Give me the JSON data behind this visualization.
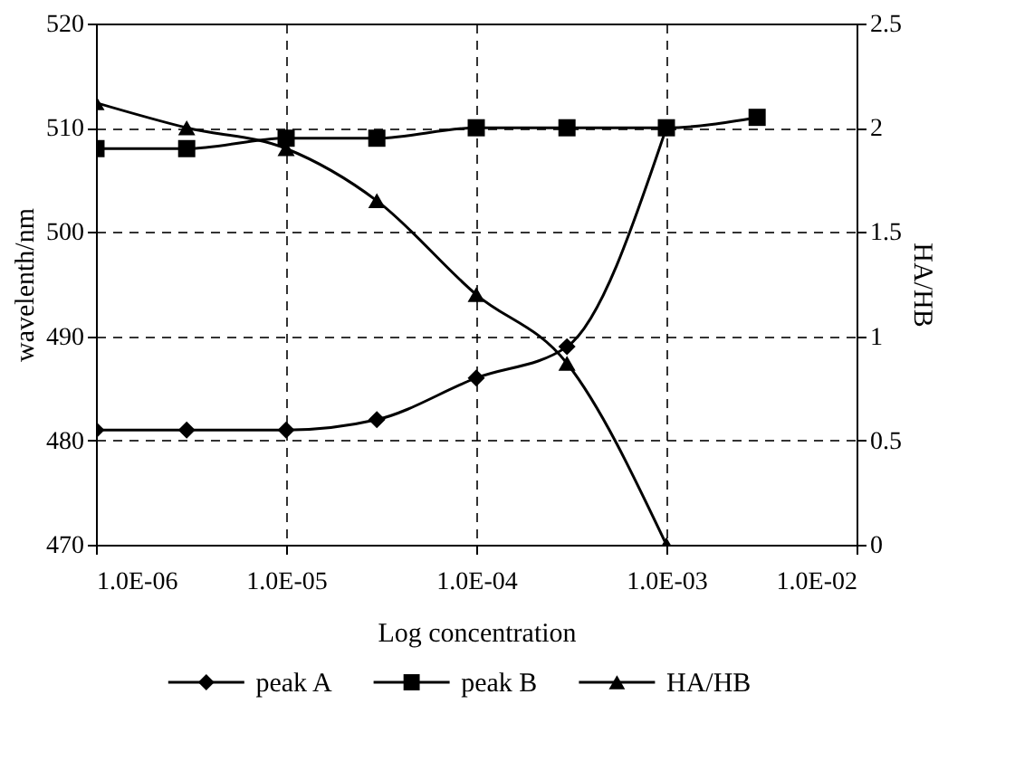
{
  "chart_data": {
    "type": "line",
    "xlabel": "Log concentration",
    "ylabel": "wavelenth/nm",
    "y2label": "HA/HB",
    "log": "x",
    "xlim": [
      1e-06,
      0.01
    ],
    "xticks": [
      {
        "value": 1e-06,
        "label": "1.0E-06"
      },
      {
        "value": 1e-05,
        "label": "1.0E-05"
      },
      {
        "value": 0.0001,
        "label": "1.0E-04"
      },
      {
        "value": 0.001,
        "label": "1.0E-03"
      },
      {
        "value": 0.01,
        "label": "1.0E-02"
      }
    ],
    "ylim": [
      470,
      520
    ],
    "yticks": [
      470,
      480,
      490,
      500,
      510,
      520
    ],
    "y2lim": [
      0,
      2.5
    ],
    "y2ticks": [
      0,
      0.5,
      1,
      1.5,
      2,
      2.5
    ],
    "grid": true,
    "legend": "bottom",
    "line_style": "solid",
    "series": [
      {
        "name": "peak A",
        "color": "#000000",
        "marker": "diamond",
        "x": [
          1e-06,
          3e-06,
          1e-05,
          3e-05,
          0.0001,
          0.0003,
          0.001
        ],
        "values": [
          481,
          481,
          481,
          482,
          486,
          489,
          510
        ]
      },
      {
        "name": "peak B",
        "color": "#000000",
        "marker": "square",
        "x": [
          1e-06,
          3e-06,
          1e-05,
          3e-05,
          0.0001,
          0.0003,
          0.001,
          0.003
        ],
        "values": [
          508,
          508,
          509,
          509,
          510,
          510,
          510,
          511
        ]
      },
      {
        "name": "HA/HB",
        "color": "#000000",
        "marker": "triangle",
        "axis": "y2",
        "x": [
          1e-06,
          3e-06,
          1e-05,
          3e-05,
          0.0001,
          0.0003,
          0.001
        ],
        "values": [
          2.12,
          2.0,
          1.9,
          1.65,
          1.2,
          0.87,
          0
        ]
      }
    ]
  }
}
